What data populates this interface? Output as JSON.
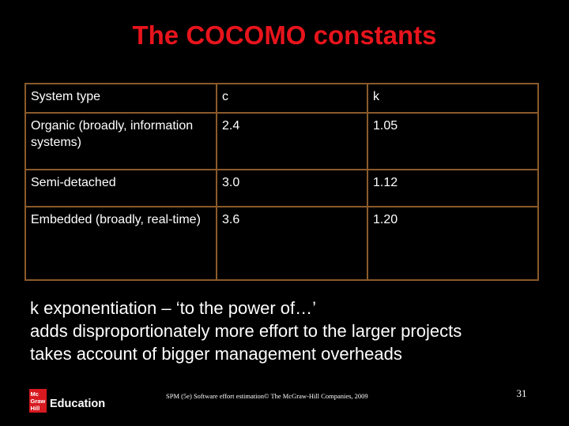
{
  "title": "The COCOMO constants",
  "table": {
    "headers": [
      "System type",
      "c",
      "k"
    ],
    "rows": [
      [
        "Organic (broadly, information systems)",
        "2.4",
        "1.05"
      ],
      [
        "Semi-detached",
        "3.0",
        "1.12"
      ],
      [
        "Embedded (broadly, real-time)",
        "3.6",
        "1.20"
      ]
    ]
  },
  "notes": [
    "k exponentiation – ‘to the power of…’",
    "adds disproportionately more effort to the larger projects",
    "takes account of bigger management overheads"
  ],
  "logo": {
    "lines": [
      "Mc",
      "Graw",
      "Hill"
    ],
    "text": "Education",
    "color": "#d71920"
  },
  "footer": "SPM (5e) Software effort estimation© The McGraw-Hill Companies, 2009",
  "page_number": "31",
  "colors": {
    "background": "#000000",
    "title": "#e8141c",
    "table_border": "#8a5a2b",
    "text": "#ffffff"
  }
}
